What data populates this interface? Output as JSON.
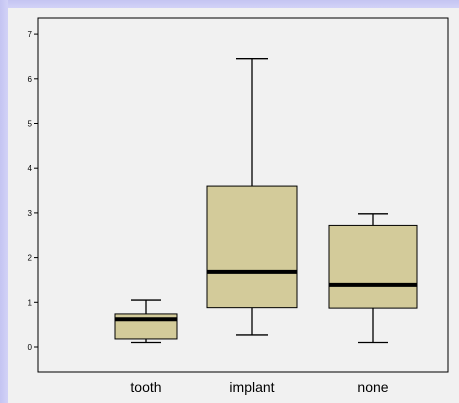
{
  "chart_data": {
    "type": "box",
    "title": "",
    "xlabel": "",
    "ylabel": "",
    "ylim": [
      -0.2,
      7.3
    ],
    "yticks": [
      0,
      1,
      2,
      3,
      4,
      5,
      6,
      7
    ],
    "grid": false,
    "legend": "none",
    "box_color": "#d3cb9a",
    "categories": [
      "tooth",
      "implant",
      "none"
    ],
    "boxes": [
      {
        "category": "tooth",
        "whisker_low": 0.1,
        "q1": 0.18,
        "median": 0.62,
        "q3": 0.74,
        "whisker_high": 1.05
      },
      {
        "category": "implant",
        "whisker_low": 0.27,
        "q1": 0.88,
        "median": 1.68,
        "q3": 3.6,
        "whisker_high": 6.45
      },
      {
        "category": "none",
        "whisker_low": 0.1,
        "q1": 0.87,
        "median": 1.39,
        "q3": 2.72,
        "whisker_high": 2.98
      }
    ]
  }
}
